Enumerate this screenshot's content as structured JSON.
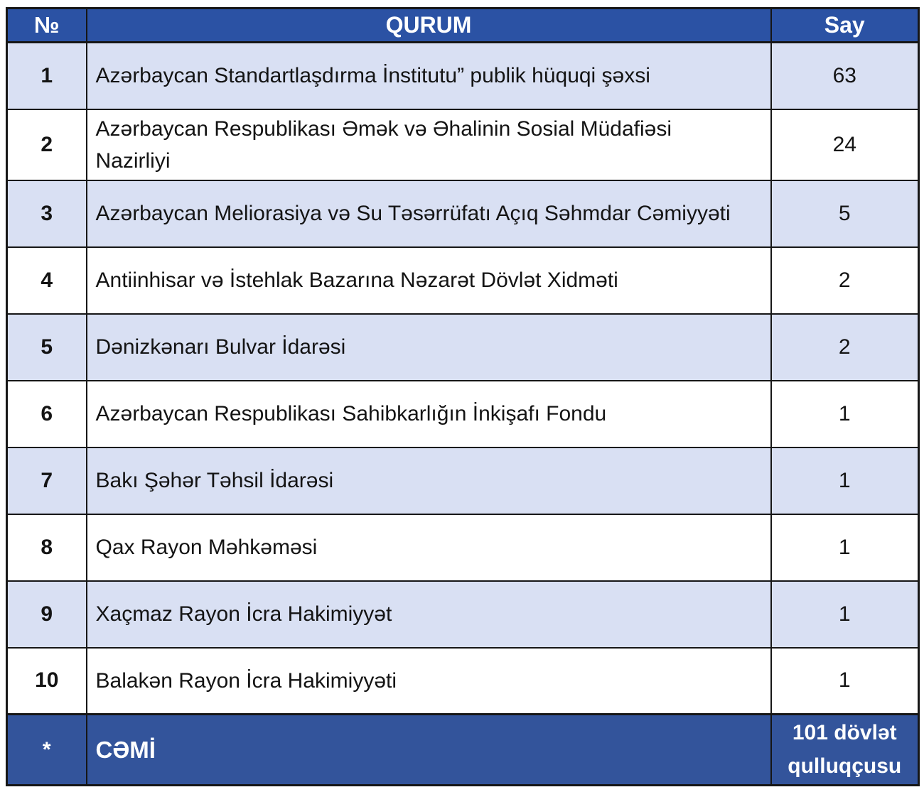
{
  "table": {
    "columns": {
      "no": "№",
      "qurum": "QURUM",
      "say": "Say"
    },
    "rows": [
      {
        "no": "1",
        "qurum": "Azərbaycan Standartlaşdırma İnstitutu” publik hüquqi şəxsi",
        "say": "63"
      },
      {
        "no": "2",
        "qurum": "Azərbaycan Respublikası Əmək və Əhalinin Sosial Müdafiəsi\nNazirliyi",
        "say": "24"
      },
      {
        "no": "3",
        "qurum": "Azərbaycan Meliorasiya və Su Təsərrüfatı Açıq Səhmdar Cəmiyyəti",
        "say": "5"
      },
      {
        "no": "4",
        "qurum": "Antiinhisar və İstehlak Bazarına Nəzarət Dövlət Xidməti",
        "say": "2"
      },
      {
        "no": "5",
        "qurum": "Dənizkənarı Bulvar İdarəsi",
        "say": "2"
      },
      {
        "no": "6",
        "qurum": "Azərbaycan Respublikası Sahibkarlığın İnkişafı Fondu",
        "say": "1"
      },
      {
        "no": "7",
        "qurum": "Bakı Şəhər Təhsil İdarəsi",
        "say": "1"
      },
      {
        "no": "8",
        "qurum": "Qax Rayon Məhkəməsi",
        "say": "1"
      },
      {
        "no": "9",
        "qurum": "Xaçmaz Rayon İcra Hakimiyyət",
        "say": "1"
      },
      {
        "no": "10",
        "qurum": "Balakən Rayon İcra Hakimiyyəti",
        "say": "1"
      }
    ],
    "footer": {
      "no": "*",
      "qurum": "CƏMİ",
      "say": "101 dövlət\nqulluqçusu"
    }
  },
  "colors": {
    "header_bg": "#2B52A4",
    "footer_bg": "#33549B",
    "stripe_bg": "#D9E0F3",
    "white_bg": "#FFFFFF",
    "border": "#161616",
    "header_text": "#FFFFFF",
    "body_text": "#141414"
  }
}
